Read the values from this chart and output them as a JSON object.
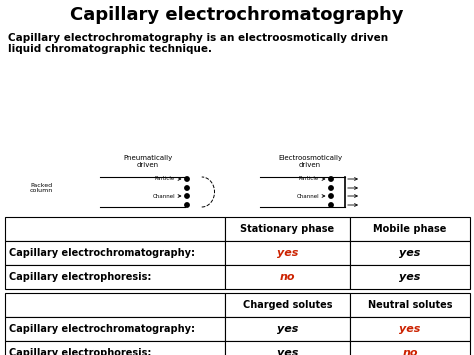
{
  "title": "Capillary electrochromatography",
  "subtitle_line1": "Capillary electrochromatography is an electroosmotically driven",
  "subtitle_line2": "liquid chromatographic technique.",
  "background_color": "#ffffff",
  "title_fontsize": 13,
  "subtitle_fontsize": 7.5,
  "table1": {
    "col_headers": [
      "",
      "Stationary phase",
      "Mobile phase"
    ],
    "rows": [
      [
        "Capillary electrochromatography:",
        "yes",
        "yes"
      ],
      [
        "Capillary electrophoresis:",
        "no",
        "yes"
      ]
    ],
    "colored_cells": {
      "1,1": "#cc2200",
      "2,1": "#cc2200"
    }
  },
  "table2": {
    "col_headers": [
      "",
      "Charged solutes",
      "Neutral solutes"
    ],
    "rows": [
      [
        "Capillary electrochromatography:",
        "yes",
        "yes"
      ],
      [
        "Capillary electrophoresis:",
        "yes",
        "no"
      ]
    ],
    "colored_cells": {
      "1,2": "#cc2200",
      "2,2": "#cc2200"
    }
  }
}
